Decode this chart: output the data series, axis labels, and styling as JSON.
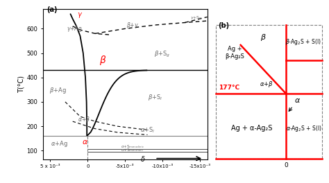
{
  "fig_width": 4.74,
  "fig_height": 2.64,
  "dpi": 100,
  "panel_a": {
    "ylabel": "T(°C)",
    "xlabel": "δ",
    "xlim": [
      0.006,
      -0.016
    ],
    "ylim": [
      65,
      680
    ],
    "yticks": [
      100,
      200,
      300,
      400,
      500,
      600
    ],
    "xtick_vals": [
      0.005,
      0,
      -0.005,
      -0.01,
      -0.015
    ],
    "xtick_labels": [
      "5 x 10⁻³",
      "0",
      "-5x10⁻³",
      "-10x10⁻³",
      "-15x10⁻³"
    ]
  }
}
